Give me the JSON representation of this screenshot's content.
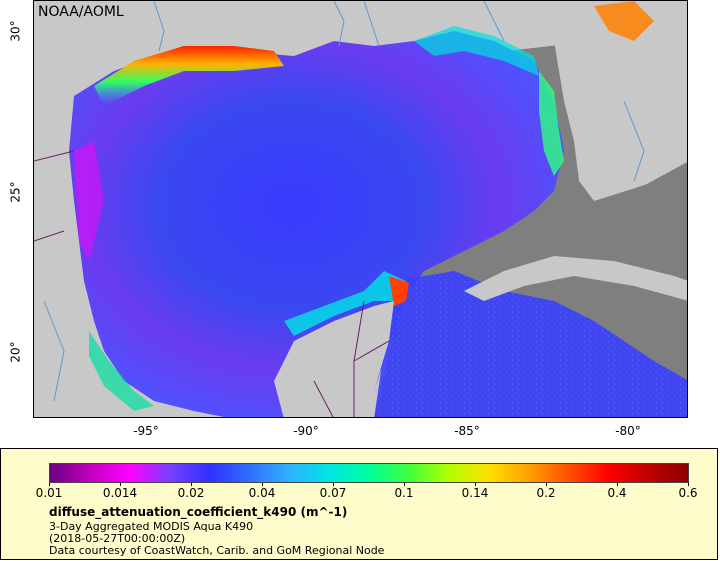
{
  "map": {
    "agency": "NOAA/AOML",
    "lat_labels": [
      "30°",
      "25°",
      "20°"
    ],
    "lon_labels": [
      "-95°",
      "-90°",
      "-85°",
      "-80°"
    ],
    "colors": {
      "land": "#c8c8c8",
      "no_data": "#7f7f7f",
      "rivers": "#5b9bd5",
      "borders": "#6b1f6b"
    }
  },
  "legend": {
    "ticks": [
      "0.01",
      "0.014",
      "0.02",
      "0.04",
      "0.07",
      "0.1",
      "0.14",
      "0.2",
      "0.4",
      "0.6"
    ],
    "variable": "diffuse_attenuation_coefficient_k490 (m^-1)",
    "product": "3-Day Aggregated MODIS Aqua K490",
    "time": "(2018-05-27T00:00:00Z)",
    "credit": "Data courtesy of CoastWatch, Carib. and GoM Regional Node",
    "colorbar_colors": [
      "#6a0080",
      "#c000c0",
      "#ff00ff",
      "#7a40ff",
      "#3030ff",
      "#2f6fff",
      "#2fb0ff",
      "#00e5e5",
      "#00ff9a",
      "#3fff3f",
      "#b0ff00",
      "#ffe000",
      "#ffa000",
      "#ff5000",
      "#ff0000",
      "#c00000",
      "#8b0000"
    ]
  }
}
